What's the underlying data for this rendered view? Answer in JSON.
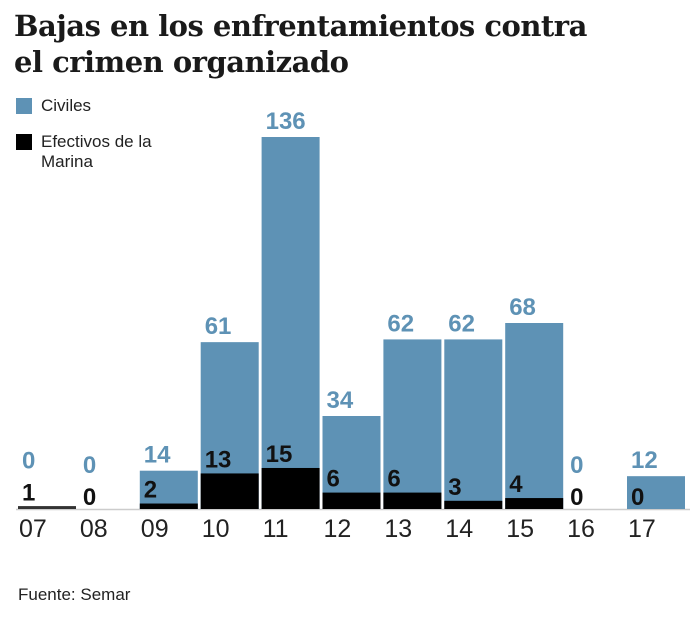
{
  "chart_data": {
    "type": "bar",
    "title": "Bajas en los enfrentamientos contra el crimen organizado",
    "categories": [
      "07",
      "08",
      "09",
      "10",
      "11",
      "12",
      "13",
      "14",
      "15",
      "16",
      "17"
    ],
    "series": [
      {
        "name": "Civiles",
        "color": "#5e92b5",
        "values": [
          0,
          0,
          14,
          61,
          136,
          34,
          62,
          62,
          68,
          0,
          12
        ]
      },
      {
        "name": "Efectivos de la Marina",
        "color": "#000000",
        "values": [
          1,
          0,
          2,
          13,
          15,
          6,
          6,
          3,
          4,
          0,
          0
        ]
      }
    ],
    "ylim": [
      0,
      140
    ],
    "grid": false,
    "legend": "top-left",
    "source": "Fuente: Semar"
  }
}
